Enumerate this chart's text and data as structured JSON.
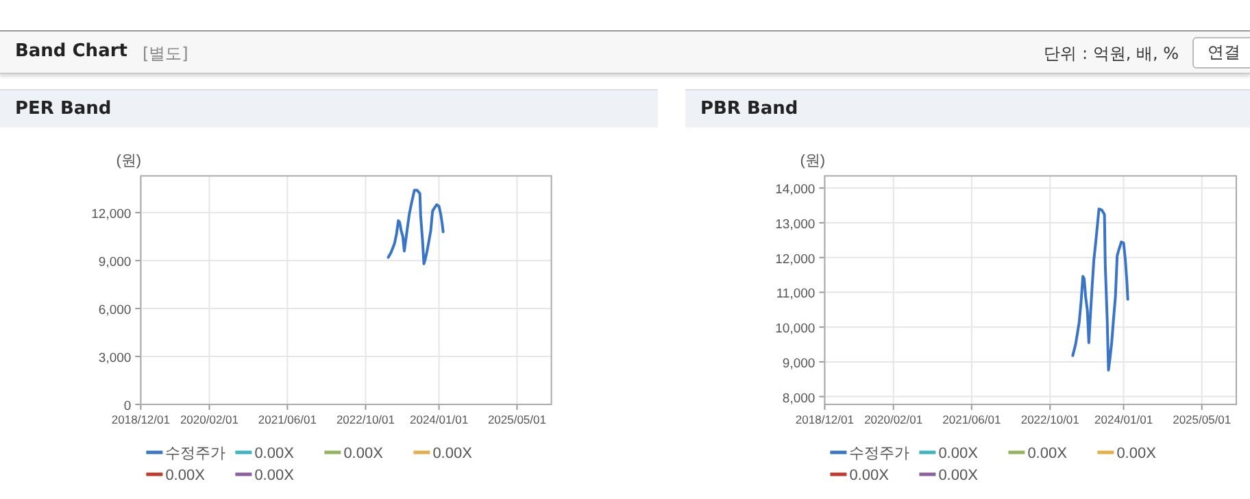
{
  "chart_data": [
    {
      "type": "other",
      "title": "Band Chart",
      "annotations": [
        "[별도]",
        "단위 : 억원, 배, %",
        "연결"
      ]
    },
    {
      "type": "line",
      "title": "PER Band",
      "ylabel": "(원)",
      "xlim": [
        "2018-12-01",
        "2025-12-01"
      ],
      "xticks": [
        {
          "value": "2018-12-01",
          "label": "2018/12/01"
        },
        {
          "value": "2020-02-01",
          "label": "2020/02/01"
        },
        {
          "value": "2021-06-01",
          "label": "2021/06/01"
        },
        {
          "value": "2022-10-01",
          "label": "2022/10/01"
        },
        {
          "value": "2024-01-01",
          "label": "2024/01/01"
        },
        {
          "value": "2025-05-01",
          "label": "2025/05/01"
        }
      ],
      "ylim": [
        0,
        14300
      ],
      "yticks": [
        {
          "value": 0,
          "label": "0"
        },
        {
          "value": 3000,
          "label": "3,000"
        },
        {
          "value": 6000,
          "label": "6,000"
        },
        {
          "value": 9000,
          "label": "9,000"
        },
        {
          "value": 12000,
          "label": "12,000"
        }
      ],
      "grid": true,
      "legend": "bottom",
      "series": [
        {
          "name": "수정주가",
          "color": "#3a74c7",
          "x": [
            "2023-02-19",
            "2023-03-08",
            "2023-03-20",
            "2023-03-31",
            "2023-04-12",
            "2023-04-23",
            "2023-05-01",
            "2023-05-10",
            "2023-05-21",
            "2023-05-30",
            "2023-06-07",
            "2023-06-19",
            "2023-06-30",
            "2023-07-12",
            "2023-07-23",
            "2023-08-01",
            "2023-08-18",
            "2023-09-04",
            "2023-09-09",
            "2023-09-21",
            "2023-09-29",
            "2023-10-08",
            "2023-10-19",
            "2023-10-30",
            "2023-11-11",
            "2023-11-22",
            "2023-12-04",
            "2023-12-18",
            "2024-01-01",
            "2024-01-12",
            "2024-01-21",
            "2024-01-27"
          ],
          "values": [
            9200,
            9500,
            9800,
            10100,
            10700,
            11500,
            11400,
            10900,
            10500,
            9600,
            10200,
            11100,
            11900,
            12500,
            13000,
            13400,
            13400,
            13200,
            11800,
            10200,
            8800,
            9100,
            9600,
            10200,
            10900,
            12100,
            12300,
            12500,
            12400,
            11900,
            11300,
            10800
          ]
        },
        {
          "name": "0.00X",
          "color": "#3bb3c3"
        },
        {
          "name": "0.00X",
          "color": "#95b35f"
        },
        {
          "name": "0.00X",
          "color": "#e5ad48"
        },
        {
          "name": "0.00X",
          "color": "#c0392b"
        },
        {
          "name": "0.00X",
          "color": "#8e5ea2"
        }
      ]
    },
    {
      "type": "line",
      "title": "PBR Band",
      "ylabel": "(원)",
      "xlim": [
        "2018-12-01",
        "2025-12-01"
      ],
      "xticks": [
        {
          "value": "2018-12-01",
          "label": "2018/12/01"
        },
        {
          "value": "2020-02-01",
          "label": "2020/02/01"
        },
        {
          "value": "2021-06-01",
          "label": "2021/06/01"
        },
        {
          "value": "2022-10-01",
          "label": "2022/10/01"
        },
        {
          "value": "2024-01-01",
          "label": "2024/01/01"
        },
        {
          "value": "2025-05-01",
          "label": "2025/05/01"
        }
      ],
      "ylim": [
        7775,
        14350
      ],
      "yticks": [
        {
          "value": 8000,
          "label": "8,000"
        },
        {
          "value": 9000,
          "label": "9,000"
        },
        {
          "value": 10000,
          "label": "10,000"
        },
        {
          "value": 11000,
          "label": "11,000"
        },
        {
          "value": 12000,
          "label": "12,000"
        },
        {
          "value": 13000,
          "label": "13,000"
        },
        {
          "value": 14000,
          "label": "14,000"
        }
      ],
      "grid": true,
      "legend": "bottom",
      "series": [
        {
          "name": "수정주가",
          "color": "#3a74c7",
          "x": [
            "2023-02-19",
            "2023-03-08",
            "2023-03-20",
            "2023-03-31",
            "2023-04-12",
            "2023-04-23",
            "2023-05-01",
            "2023-05-10",
            "2023-05-21",
            "2023-05-30",
            "2023-06-07",
            "2023-06-19",
            "2023-06-30",
            "2023-07-12",
            "2023-07-23",
            "2023-08-01",
            "2023-08-18",
            "2023-09-04",
            "2023-09-09",
            "2023-09-21",
            "2023-09-29",
            "2023-10-08",
            "2023-10-19",
            "2023-10-30",
            "2023-11-11",
            "2023-11-22",
            "2023-12-04",
            "2023-12-18",
            "2024-01-01",
            "2024-01-12",
            "2024-01-21",
            "2024-01-27"
          ],
          "values": [
            9180,
            9490,
            9820,
            10140,
            10740,
            11460,
            11390,
            10870,
            10470,
            9550,
            10210,
            11130,
            11920,
            12450,
            12970,
            13400,
            13370,
            13240,
            11790,
            10210,
            8760,
            9090,
            9550,
            10210,
            10870,
            12050,
            12250,
            12450,
            12420,
            11920,
            11330,
            10800
          ]
        },
        {
          "name": "0.00X",
          "color": "#3bb3c3"
        },
        {
          "name": "0.00X",
          "color": "#95b35f"
        },
        {
          "name": "0.00X",
          "color": "#e5ad48"
        },
        {
          "name": "0.00X",
          "color": "#c0392b"
        },
        {
          "name": "0.00X",
          "color": "#8e5ea2"
        }
      ]
    }
  ]
}
